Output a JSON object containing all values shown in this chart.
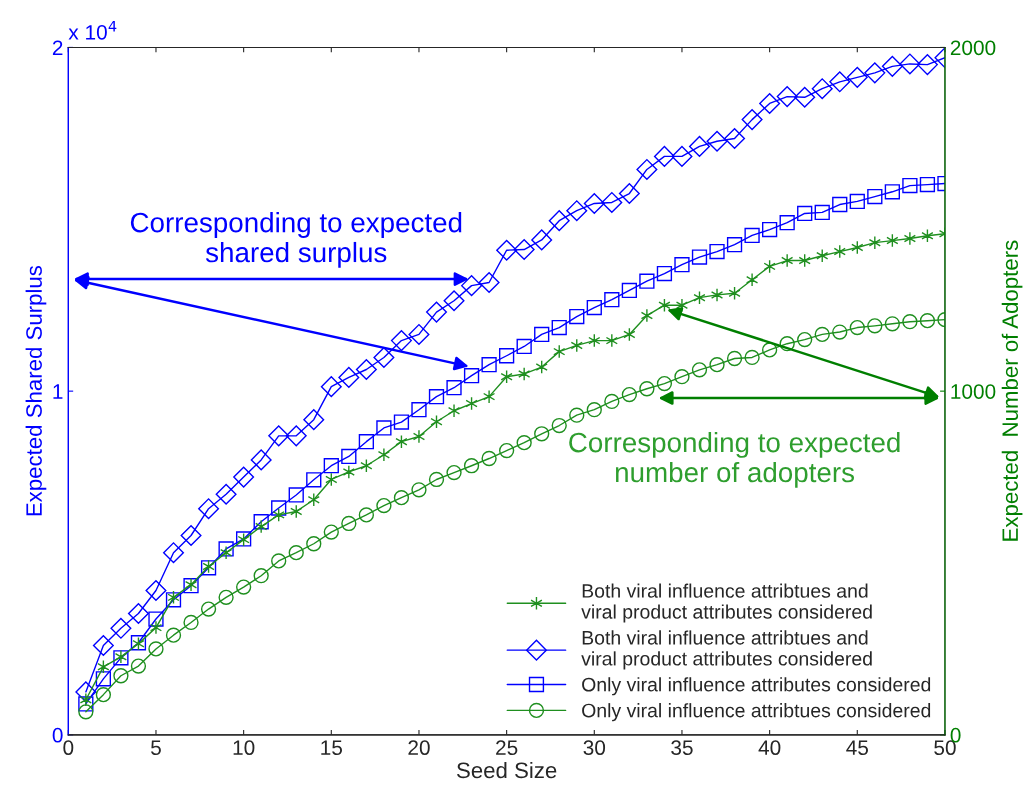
{
  "chart_data": {
    "type": "line",
    "xlabel": "Seed Size",
    "ylabel": "Expected Shared Surplus",
    "y2label": "Expected  Number of Adopters",
    "x": [
      1,
      2,
      3,
      4,
      5,
      6,
      7,
      8,
      9,
      10,
      11,
      12,
      13,
      14,
      15,
      16,
      17,
      18,
      19,
      20,
      21,
      22,
      23,
      24,
      25,
      26,
      27,
      28,
      29,
      30,
      31,
      32,
      33,
      34,
      35,
      36,
      37,
      38,
      39,
      40,
      41,
      42,
      43,
      44,
      45,
      46,
      47,
      48,
      49,
      50
    ],
    "xlim": [
      0,
      50
    ],
    "xticks": [
      0,
      5,
      10,
      15,
      20,
      25,
      30,
      35,
      40,
      45,
      50
    ],
    "ylim": [
      0,
      2
    ],
    "yticks": [
      0,
      1,
      2
    ],
    "y2lim": [
      0,
      2000
    ],
    "y2ticks": [
      0,
      1000,
      2000
    ],
    "grid": false,
    "legend": "bottom right",
    "annotations": [
      "x 10$^{4}$",
      "Corresponding to expected\nshared surplus",
      "Corresponding to expected\nnumber of adopters"
    ],
    "series": [
      {
        "name": "Both viral influence attribtues and\nviral product attributes considered",
        "color": "#1f8f1f",
        "marker": "cross",
        "axis": "y2",
        "values": [
          102,
          198,
          227,
          265,
          312,
          400,
          437,
          490,
          530,
          568,
          606,
          640,
          650,
          684,
          743,
          765,
          783,
          815,
          853,
          868,
          911,
          943,
          964,
          984,
          1042,
          1050,
          1070,
          1115,
          1133,
          1147,
          1147,
          1165,
          1220,
          1250,
          1250,
          1272,
          1280,
          1285,
          1324,
          1363,
          1380,
          1380,
          1394,
          1406,
          1418,
          1432,
          1438,
          1444,
          1452,
          1458
        ]
      },
      {
        "name": "Both viral influence attribtues and\nviral product attributes considered",
        "color": "#0000ff",
        "marker": "diamond",
        "values": [
          0.125,
          0.26,
          0.31,
          0.353,
          0.42,
          0.53,
          0.58,
          0.658,
          0.7,
          0.75,
          0.8,
          0.87,
          0.87,
          0.917,
          1.013,
          1.04,
          1.063,
          1.098,
          1.147,
          1.165,
          1.23,
          1.263,
          1.307,
          1.316,
          1.41,
          1.412,
          1.44,
          1.496,
          1.525,
          1.546,
          1.549,
          1.575,
          1.645,
          1.683,
          1.683,
          1.712,
          1.727,
          1.735,
          1.79,
          1.837,
          1.857,
          1.855,
          1.88,
          1.9,
          1.913,
          1.926,
          1.945,
          1.952,
          1.95,
          1.97
        ]
      },
      {
        "name": "Only viral influence attributes considered",
        "color": "#0000ff",
        "marker": "square",
        "values": [
          0.09,
          0.163,
          0.224,
          0.268,
          0.337,
          0.393,
          0.434,
          0.486,
          0.541,
          0.57,
          0.62,
          0.66,
          0.698,
          0.742,
          0.783,
          0.81,
          0.853,
          0.893,
          0.91,
          0.946,
          0.984,
          1.01,
          1.045,
          1.077,
          1.103,
          1.13,
          1.165,
          1.185,
          1.217,
          1.243,
          1.266,
          1.293,
          1.32,
          1.342,
          1.368,
          1.39,
          1.406,
          1.426,
          1.453,
          1.47,
          1.49,
          1.517,
          1.52,
          1.543,
          1.552,
          1.566,
          1.58,
          1.598,
          1.601,
          1.604
        ]
      },
      {
        "name": "Only viral influence attribtues considered",
        "color": "#1f8f1f",
        "marker": "circle",
        "axis": "y2",
        "values": [
          67,
          117,
          172,
          200,
          250,
          290,
          327,
          366,
          400,
          430,
          463,
          506,
          530,
          556,
          590,
          615,
          640,
          667,
          690,
          713,
          743,
          763,
          783,
          804,
          827,
          850,
          876,
          900,
          930,
          946,
          970,
          990,
          1007,
          1022,
          1042,
          1062,
          1077,
          1095,
          1098,
          1120,
          1138,
          1150,
          1165,
          1172,
          1185,
          1190,
          1196,
          1202,
          1205,
          1208
        ]
      }
    ]
  }
}
